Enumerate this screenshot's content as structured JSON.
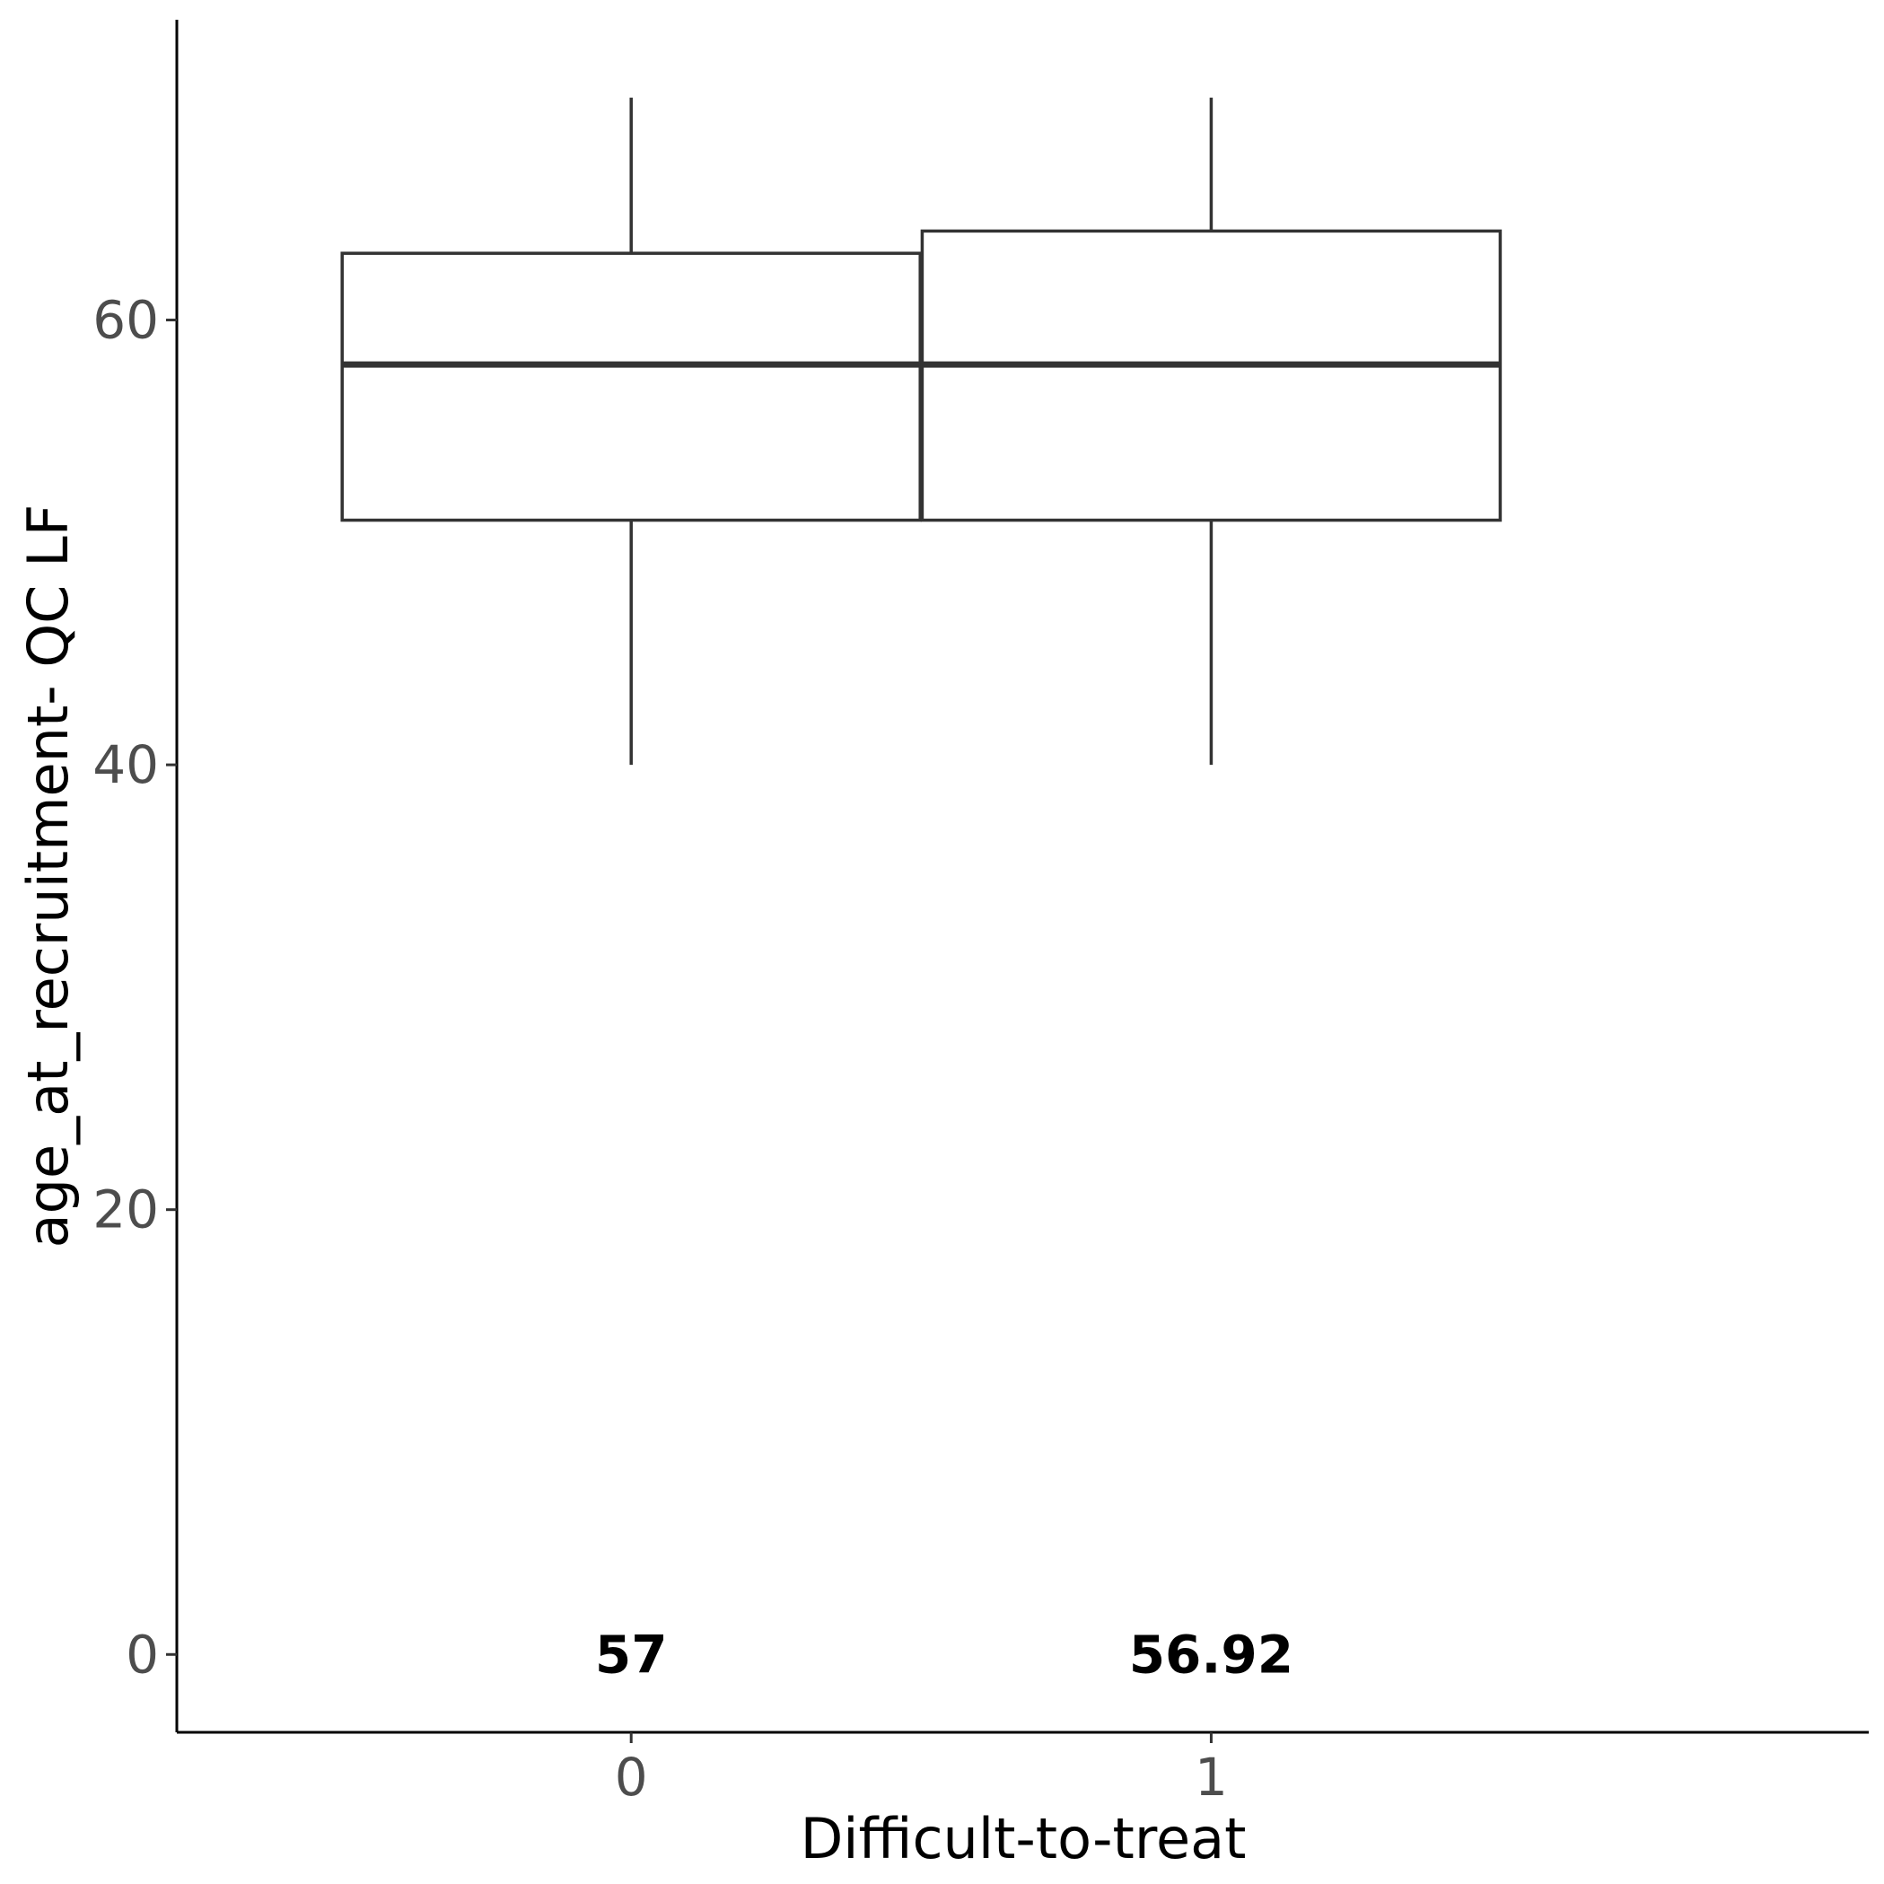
{
  "chart_data": {
    "type": "box",
    "xlabel": "Difficult-to-treat",
    "ylabel": "age_at_recruitment- QC LF",
    "ylim": [
      -3.5,
      73.5
    ],
    "yticks": [
      0,
      20,
      40,
      60
    ],
    "grid": false,
    "categories": [
      "0",
      "1"
    ],
    "boxes": [
      {
        "category": "0",
        "lower_whisker": 40,
        "q1": 51,
        "median": 58,
        "q3": 63,
        "upper_whisker": 70,
        "mean_label": "57"
      },
      {
        "category": "1",
        "lower_whisker": 40,
        "q1": 51,
        "median": 58,
        "q3": 64,
        "upper_whisker": 70,
        "mean_label": "56.92"
      }
    ],
    "label_y": 0,
    "colors": {
      "box_outline": "#333333",
      "box_fill": "#ffffff",
      "tick_text": "#4d4d4d"
    }
  }
}
